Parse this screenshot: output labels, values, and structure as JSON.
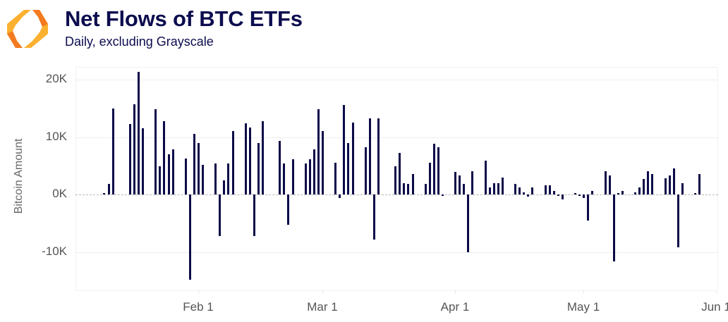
{
  "header": {
    "title": "Net Flows of BTC ETFs",
    "subtitle": "Daily, excluding Grayscale",
    "logo": "hexagon-brackets-logo"
  },
  "colors": {
    "bar": "#0b0a48",
    "title": "#0c0c4f",
    "logo_orange": "#f47a20",
    "logo_yellow": "#fbb130"
  },
  "chart_data": {
    "type": "bar",
    "title": "Net Flows of BTC ETFs",
    "subtitle": "Daily, excluding Grayscale",
    "xlabel": "",
    "ylabel": "Bitcoin Amount",
    "ylim": [
      -17000,
      23000
    ],
    "yticks": [
      {
        "value": 20000,
        "label": "20K"
      },
      {
        "value": 10000,
        "label": "10K"
      },
      {
        "value": 0,
        "label": "0K"
      },
      {
        "value": -10000,
        "label": "-10K"
      }
    ],
    "xticks": [
      {
        "day": 0,
        "label": "Feb 1"
      },
      {
        "day": 29,
        "label": "Mar 1"
      },
      {
        "day": 60,
        "label": "Apr 1"
      },
      {
        "day": 90,
        "label": "May 1"
      },
      {
        "day": 121,
        "label": "Jun 1"
      }
    ],
    "x_unit": "days relative to Feb 1",
    "grid": true,
    "legend": null,
    "categories": [
      "Jan 10",
      "Jan 11",
      "Jan 12",
      "Jan 16",
      "Jan 17",
      "Jan 18",
      "Jan 19",
      "Jan 22",
      "Jan 23",
      "Jan 24",
      "Jan 25",
      "Jan 26",
      "Jan 29",
      "Jan 30",
      "Jan 31",
      "Feb 1",
      "Feb 2",
      "Feb 5",
      "Feb 6",
      "Feb 7",
      "Feb 8",
      "Feb 9",
      "Feb 12",
      "Feb 13",
      "Feb 14",
      "Feb 15",
      "Feb 16",
      "Feb 20",
      "Feb 21",
      "Feb 22",
      "Feb 23",
      "Feb 26",
      "Feb 27",
      "Feb 28",
      "Feb 29",
      "Mar 1",
      "Mar 4",
      "Mar 5",
      "Mar 6",
      "Mar 7",
      "Mar 8",
      "Mar 11",
      "Mar 12",
      "Mar 13",
      "Mar 14",
      "Mar 18",
      "Mar 19",
      "Mar 20",
      "Mar 21",
      "Mar 22",
      "Mar 25",
      "Mar 26",
      "Mar 27",
      "Mar 28",
      "Mar 29",
      "Apr 1",
      "Apr 2",
      "Apr 3",
      "Apr 4",
      "Apr 5",
      "Apr 8",
      "Apr 9",
      "Apr 10",
      "Apr 11",
      "Apr 12",
      "Apr 15",
      "Apr 16",
      "Apr 17",
      "Apr 18",
      "Apr 19",
      "Apr 22",
      "Apr 23",
      "Apr 24",
      "Apr 25",
      "Apr 26",
      "Apr 29",
      "Apr 30",
      "May 1",
      "May 2",
      "May 3",
      "May 6",
      "May 7",
      "May 8",
      "May 9",
      "May 10",
      "May 13",
      "May 14",
      "May 15",
      "May 16",
      "May 17",
      "May 20",
      "May 21",
      "May 22",
      "May 23",
      "May 24",
      "May 27",
      "May 28"
    ],
    "days": [
      -22,
      -21,
      -20,
      -16,
      -15,
      -14,
      -13,
      -10,
      -9,
      -8,
      -7,
      -6,
      -3,
      -2,
      -1,
      0,
      1,
      4,
      5,
      6,
      7,
      8,
      11,
      12,
      13,
      14,
      15,
      19,
      20,
      21,
      22,
      25,
      26,
      27,
      28,
      29,
      32,
      33,
      34,
      35,
      36,
      39,
      40,
      41,
      42,
      46,
      47,
      48,
      49,
      50,
      53,
      54,
      55,
      56,
      57,
      60,
      61,
      62,
      63,
      64,
      67,
      68,
      69,
      70,
      71,
      74,
      75,
      76,
      77,
      78,
      81,
      82,
      83,
      84,
      85,
      88,
      89,
      90,
      91,
      92,
      95,
      96,
      97,
      98,
      99,
      102,
      103,
      104,
      105,
      106,
      109,
      110,
      111,
      112,
      113,
      116,
      117
    ],
    "values": [
      200,
      1800,
      15000,
      12300,
      15700,
      21300,
      11500,
      14800,
      4900,
      12700,
      7000,
      7900,
      6300,
      -14900,
      10600,
      9000,
      5100,
      5400,
      -7300,
      2400,
      5400,
      11100,
      12400,
      11700,
      -7300,
      9000,
      12700,
      9300,
      5400,
      -5300,
      6100,
      5400,
      6100,
      7900,
      14800,
      11100,
      5500,
      -600,
      15600,
      9000,
      12500,
      8200,
      13300,
      -7800,
      13300,
      4900,
      7200,
      2000,
      1800,
      3500,
      1800,
      5500,
      8800,
      8200,
      -200,
      3900,
      3300,
      1800,
      -10000,
      4100,
      5900,
      1200,
      2000,
      2000,
      3000,
      1800,
      1200,
      400,
      -400,
      1200,
      1600,
      1600,
      600,
      -200,
      -800,
      200,
      -200,
      -600,
      -4500,
      600,
      4100,
      3300,
      -11700,
      200,
      600,
      400,
      1200,
      2700,
      4100,
      3500,
      2800,
      3300,
      4500,
      -9200,
      2000,
      200,
      3500
    ]
  }
}
